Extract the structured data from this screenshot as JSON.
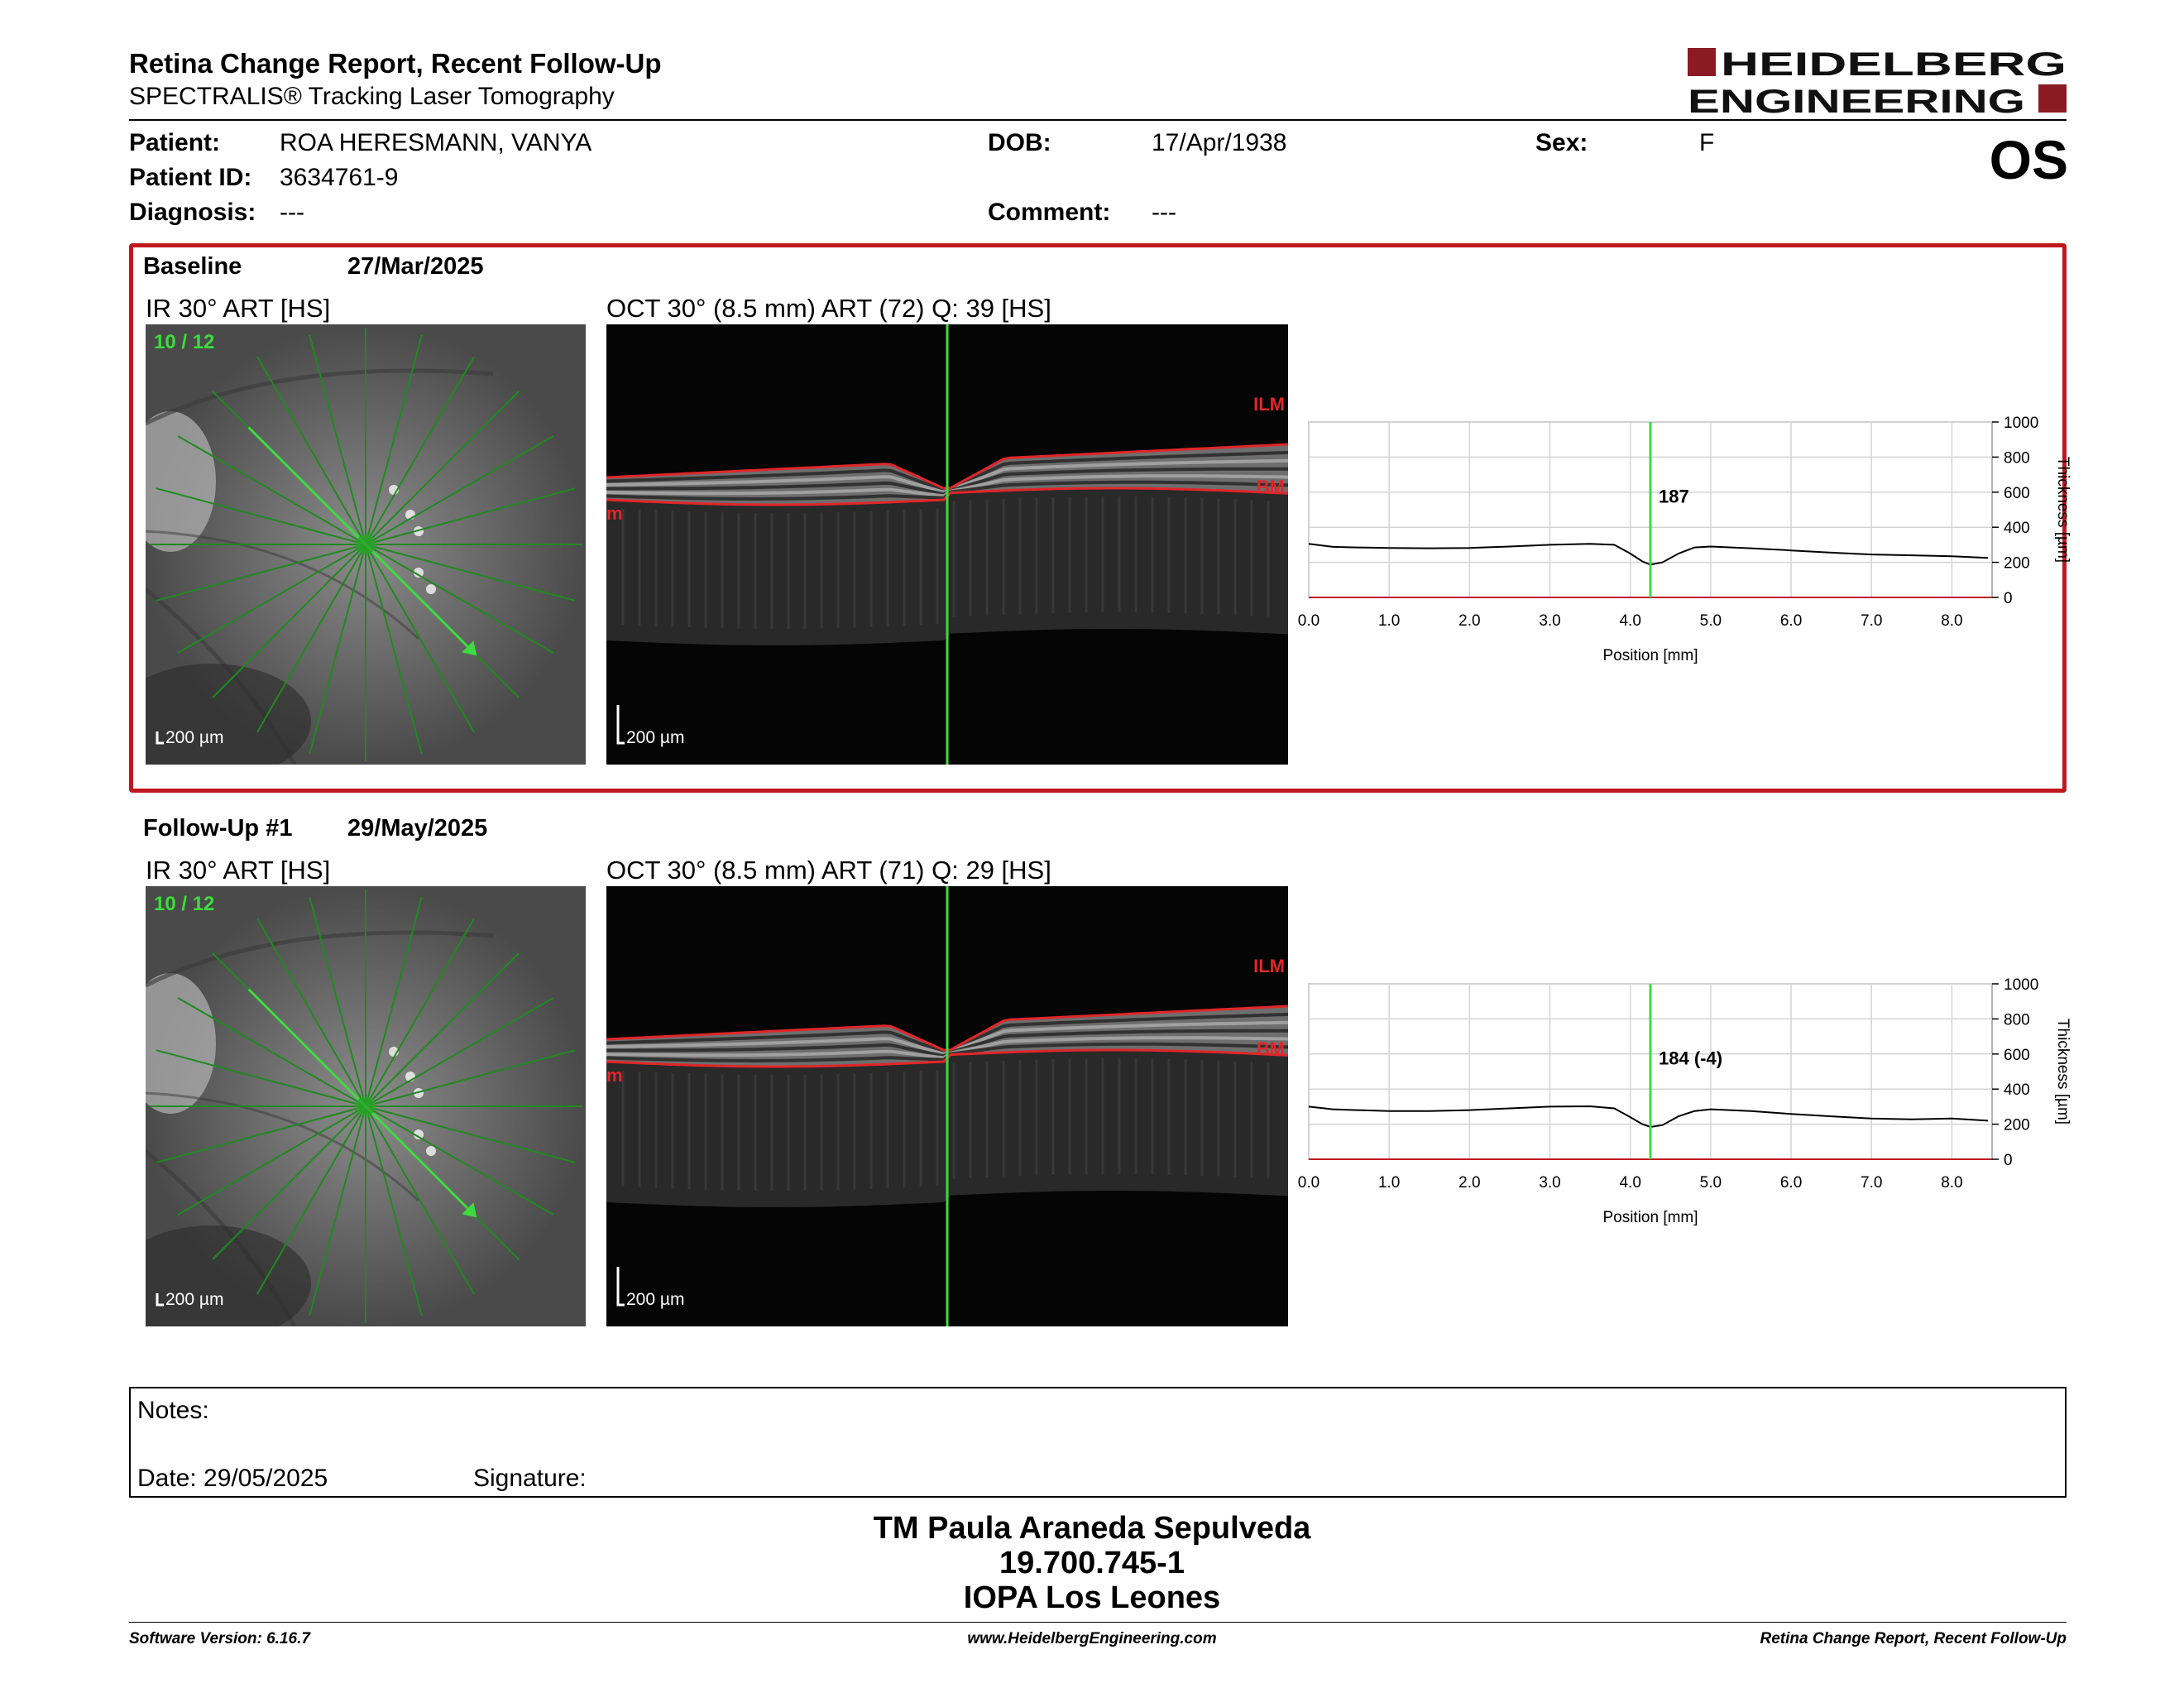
{
  "header": {
    "title": "Retina Change Report, Recent Follow-Up",
    "subtitle": "SPECTRALIS® Tracking Laser Tomography",
    "brand_line1": "HEIDELBERG",
    "brand_line2": "ENGINEERING",
    "eye": "OS"
  },
  "patient": {
    "patient_label": "Patient:",
    "patient_name": "ROA HERESMANN, VANYA",
    "id_label": "Patient ID:",
    "id": "3634761-9",
    "diagnosis_label": "Diagnosis:",
    "diagnosis": "---",
    "dob_label": "DOB:",
    "dob": "17/Apr/1938",
    "comment_label": "Comment:",
    "comment": "---",
    "sex_label": "Sex:",
    "sex": "F"
  },
  "colors": {
    "accent_red": "#c0171f",
    "scan_green": "#3ddc3d",
    "layer_red": "#e0262a"
  },
  "exams": [
    {
      "label": "Baseline",
      "date": "27/Mar/2025",
      "ir_caption": "IR 30° ART [HS]",
      "oct_caption": "OCT 30° (8.5 mm) ART (72) Q: 39 [HS]",
      "scan_index": "10 / 12",
      "ir_scale": "200 µm",
      "oct_scale": "200 µm",
      "ilm_label": "ILM",
      "bm_label": "BM",
      "m_label": "m",
      "cursor_value": "187"
    },
    {
      "label": "Follow-Up #1",
      "date": "29/May/2025",
      "ir_caption": "IR 30° ART [HS]",
      "oct_caption": "OCT 30° (8.5 mm) ART (71) Q: 29 [HS]",
      "scan_index": "10 / 12",
      "ir_scale": "200 µm",
      "oct_scale": "200 µm",
      "ilm_label": "ILM",
      "bm_label": "BM",
      "m_label": "m",
      "cursor_value": "184 (-4)"
    }
  ],
  "chart_data": [
    {
      "type": "line",
      "xlabel": "Position [mm]",
      "ylabel": "Thickness [µm]",
      "xlim": [
        0,
        8.5
      ],
      "ylim": [
        0,
        1000
      ],
      "x_ticks": [
        "0.0",
        "1.0",
        "2.0",
        "3.0",
        "4.0",
        "5.0",
        "6.0",
        "7.0",
        "8.0"
      ],
      "y_ticks": [
        "0",
        "200",
        "400",
        "600",
        "800",
        "1000"
      ],
      "grid": true,
      "cursor_x": 4.25,
      "cursor_label": "187",
      "series": [
        {
          "x": [
            0,
            0.3,
            0.6,
            1.0,
            1.5,
            2.0,
            2.5,
            3.0,
            3.5,
            3.8,
            4.0,
            4.15,
            4.25,
            4.4,
            4.6,
            4.8,
            5.0,
            5.5,
            6.0,
            6.5,
            7.0,
            7.5,
            8.0,
            8.45
          ],
          "y": [
            305,
            288,
            285,
            282,
            280,
            282,
            290,
            300,
            305,
            300,
            250,
            205,
            187,
            200,
            250,
            285,
            290,
            280,
            268,
            255,
            245,
            240,
            235,
            225
          ]
        }
      ]
    },
    {
      "type": "line",
      "xlabel": "Position [mm]",
      "ylabel": "Thickness [µm]",
      "xlim": [
        0,
        8.5
      ],
      "ylim": [
        0,
        1000
      ],
      "x_ticks": [
        "0.0",
        "1.0",
        "2.0",
        "3.0",
        "4.0",
        "5.0",
        "6.0",
        "7.0",
        "8.0"
      ],
      "y_ticks": [
        "0",
        "200",
        "400",
        "600",
        "800",
        "1000"
      ],
      "grid": true,
      "cursor_x": 4.25,
      "cursor_label": "184 (-4)",
      "series": [
        {
          "x": [
            0,
            0.3,
            0.6,
            1.0,
            1.5,
            2.0,
            2.5,
            3.0,
            3.5,
            3.8,
            4.0,
            4.15,
            4.25,
            4.4,
            4.6,
            4.8,
            5.0,
            5.5,
            6.0,
            6.5,
            7.0,
            7.5,
            8.0,
            8.45
          ],
          "y": [
            300,
            285,
            280,
            275,
            275,
            280,
            290,
            300,
            302,
            290,
            240,
            200,
            184,
            195,
            245,
            275,
            285,
            275,
            258,
            245,
            232,
            228,
            232,
            220
          ]
        }
      ]
    }
  ],
  "notes": {
    "notes_label": "Notes:",
    "date_label": "Date: 29/05/2025",
    "signature_label": "Signature:"
  },
  "signature_block": {
    "name": "TM Paula Araneda Sepulveda",
    "id": "19.700.745-1",
    "org": "IOPA Los Leones"
  },
  "footer": {
    "software": "Software Version: 6.16.7",
    "website": "www.HeidelbergEngineering.com",
    "report": "Retina Change Report, Recent Follow-Up"
  }
}
